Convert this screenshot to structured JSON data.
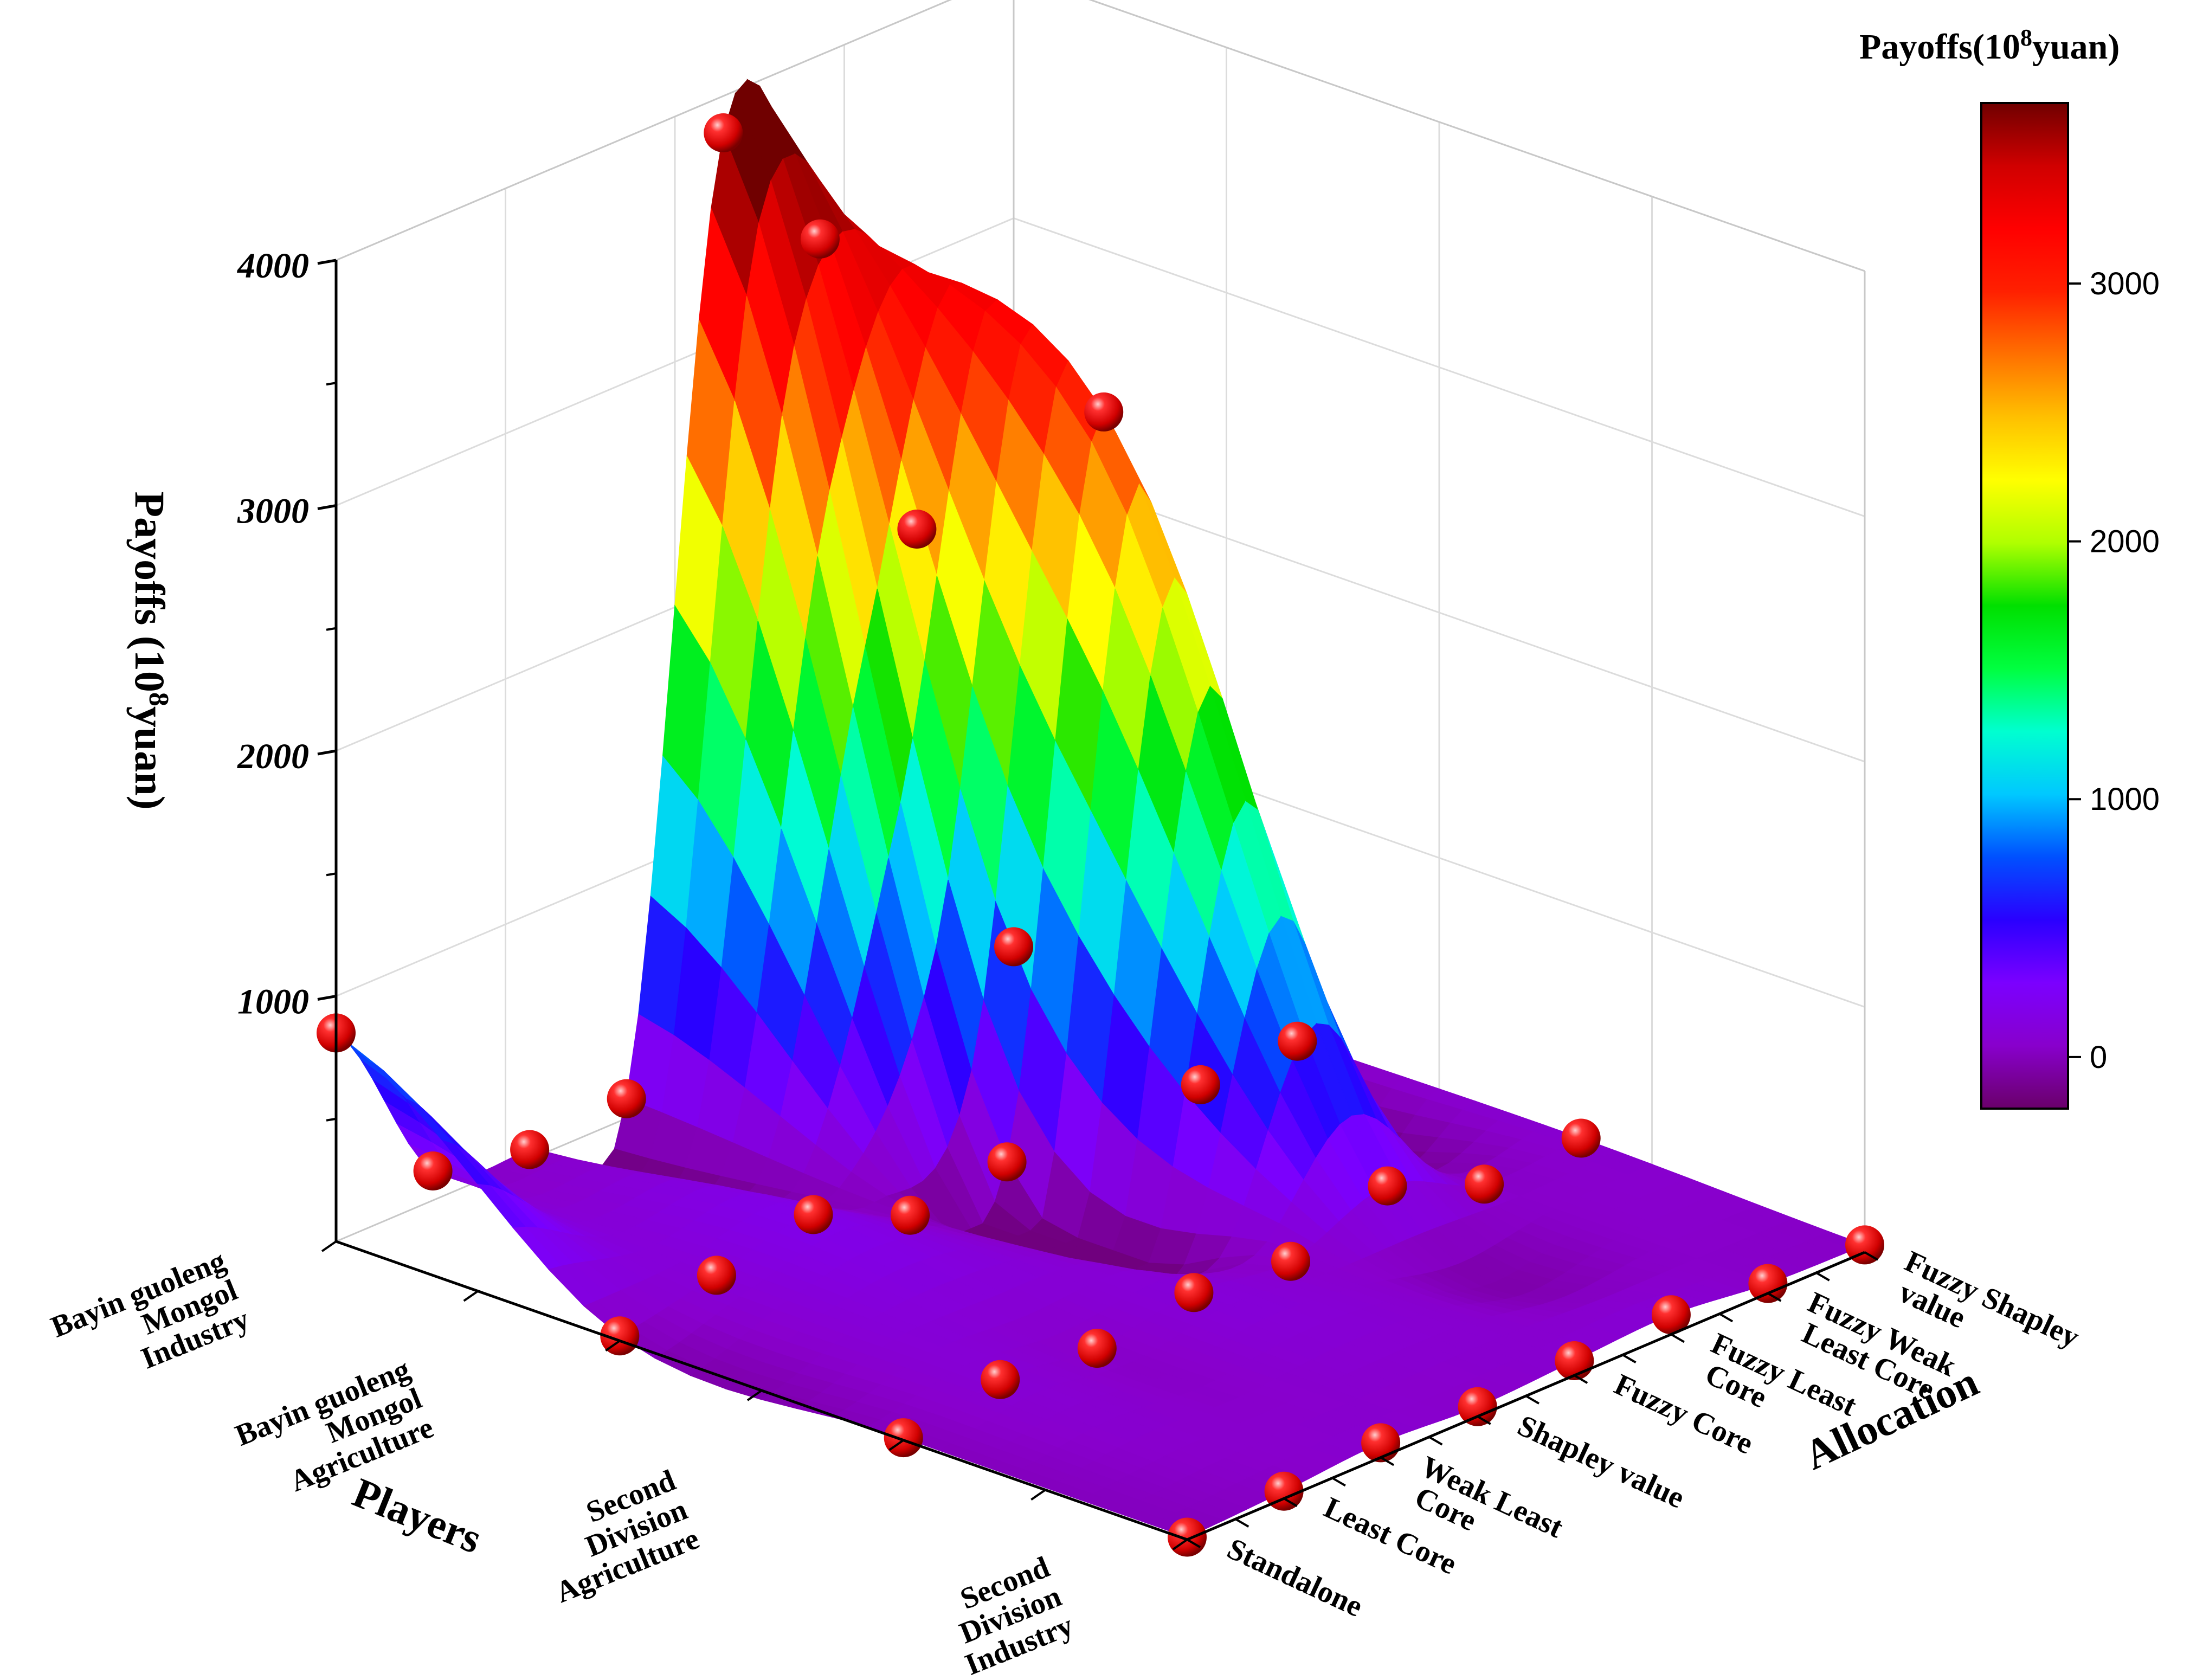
{
  "chart_data": {
    "type": "surface-3d",
    "z_axis": {
      "title": "Payoffs (10",
      "title_sup": "8",
      "title_end": "yuan)",
      "ticks": [
        1000,
        2000,
        3000,
        4000
      ],
      "range": [
        0,
        4000
      ]
    },
    "players_axis": {
      "title": "Players",
      "categories": [
        [
          "Bayin guoleng",
          "Mongol",
          "Industry"
        ],
        [
          "Bayin guoleng",
          "Mongol",
          "Agriculture"
        ],
        [
          "Second",
          "Division",
          "Agriculture"
        ],
        [
          "Second",
          "Division",
          "Industry"
        ]
      ]
    },
    "allocation_axis": {
      "title": "Allocation",
      "categories": [
        [
          "Standalone"
        ],
        [
          "Least Core"
        ],
        [
          "Weak Least",
          "Core"
        ],
        [
          "Shapley value"
        ],
        [
          "Fuzzy Core"
        ],
        [
          "Fuzzy Least",
          "Core"
        ],
        [
          "Fuzzy Weak",
          "Least Core"
        ],
        [
          "Fuzzy Shapley",
          "value"
        ]
      ]
    },
    "colorbar": {
      "title": "Payoffs(10",
      "title_sup": "8",
      "title_end": "yuan)",
      "ticks": [
        0,
        1000,
        2000,
        3000
      ],
      "range": [
        -200,
        3700
      ],
      "colors": [
        "#6a006a",
        "#8800cc",
        "#7b00ff",
        "#2a00ff",
        "#0050ff",
        "#00c8ff",
        "#00ffd0",
        "#00ff40",
        "#00e000",
        "#b0ff00",
        "#ffff00",
        "#ffc000",
        "#ff7000",
        "#ff2000",
        "#ff0000",
        "#d00000",
        "#700000"
      ]
    },
    "points": [
      {
        "player": 0,
        "alloc": 0,
        "value": 850
      },
      {
        "player": 0,
        "alloc": 1,
        "value": 120
      },
      {
        "player": 0,
        "alloc": 2,
        "value": 40
      },
      {
        "player": 0,
        "alloc": 3,
        "value": 80
      },
      {
        "player": 0,
        "alloc": 4,
        "value": 3850
      },
      {
        "player": 0,
        "alloc": 5,
        "value": 3250
      },
      {
        "player": 0,
        "alloc": 6,
        "value": 1900
      },
      {
        "player": 0,
        "alloc": 7,
        "value": 30
      },
      {
        "player": 1,
        "alloc": 0,
        "value": 20
      },
      {
        "player": 1,
        "alloc": 1,
        "value": 100
      },
      {
        "player": 1,
        "alloc": 2,
        "value": 180
      },
      {
        "player": 1,
        "alloc": 3,
        "value": 10
      },
      {
        "player": 1,
        "alloc": 4,
        "value": 60
      },
      {
        "player": 1,
        "alloc": 5,
        "value": 2950
      },
      {
        "player": 1,
        "alloc": 6,
        "value": 40
      },
      {
        "player": 1,
        "alloc": 7,
        "value": 50
      },
      {
        "player": 2,
        "alloc": 0,
        "value": 10
      },
      {
        "player": 2,
        "alloc": 1,
        "value": 80
      },
      {
        "player": 2,
        "alloc": 2,
        "value": 40
      },
      {
        "player": 2,
        "alloc": 3,
        "value": 100
      },
      {
        "player": 2,
        "alloc": 4,
        "value": 60
      },
      {
        "player": 2,
        "alloc": 5,
        "value": 200
      },
      {
        "player": 2,
        "alloc": 6,
        "value": 40
      },
      {
        "player": 2,
        "alloc": 7,
        "value": 60
      },
      {
        "player": 3,
        "alloc": 0,
        "value": 10
      },
      {
        "player": 3,
        "alloc": 1,
        "value": 30
      },
      {
        "player": 3,
        "alloc": 2,
        "value": 60
      },
      {
        "player": 3,
        "alloc": 3,
        "value": 40
      },
      {
        "player": 3,
        "alloc": 4,
        "value": 60
      },
      {
        "player": 3,
        "alloc": 5,
        "value": 80
      },
      {
        "player": 3,
        "alloc": 6,
        "value": 40
      },
      {
        "player": 3,
        "alloc": 7,
        "value": 30
      }
    ]
  }
}
